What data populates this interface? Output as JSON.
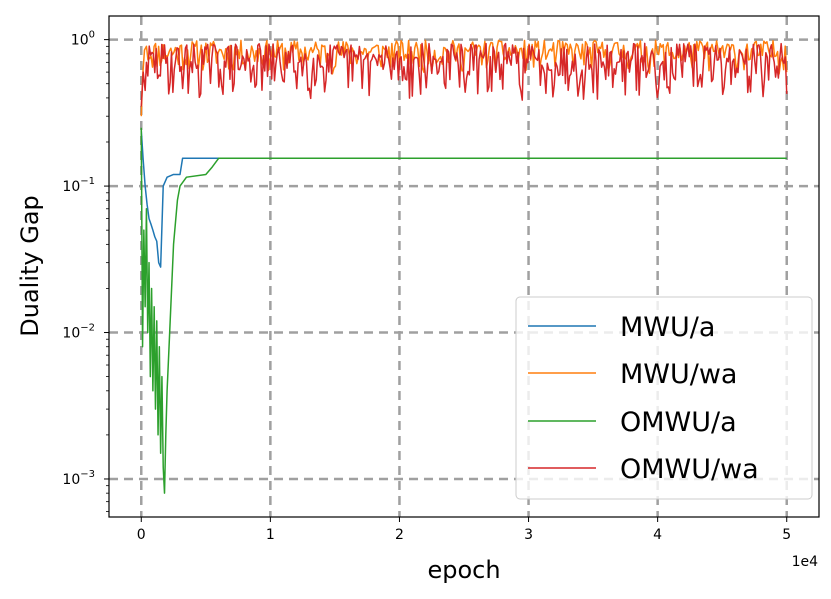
{
  "chart_data": {
    "type": "line",
    "title": "",
    "xlabel": "epoch",
    "ylabel": "Duality Gap",
    "x_offset_label": "1e4",
    "xscale": "linear",
    "yscale": "log",
    "xlim": [
      -2500,
      52500
    ],
    "ylim": [
      0.00055,
      1.45
    ],
    "grid": true,
    "legend_position": "lower-right",
    "x_ticks": [
      {
        "value": 0,
        "label": "0"
      },
      {
        "value": 10000,
        "label": "1"
      },
      {
        "value": 20000,
        "label": "2"
      },
      {
        "value": 30000,
        "label": "3"
      },
      {
        "value": 40000,
        "label": "4"
      },
      {
        "value": 50000,
        "label": "5"
      }
    ],
    "y_ticks": [
      {
        "value": 1,
        "base": "10",
        "exp": "0"
      },
      {
        "value": 0.1,
        "base": "10",
        "exp": "−1"
      },
      {
        "value": 0.01,
        "base": "10",
        "exp": "−2"
      },
      {
        "value": 0.001,
        "base": "10",
        "exp": "−3"
      }
    ],
    "series": [
      {
        "name": "MWU/a",
        "color": "#1f77b4",
        "points": [
          [
            0,
            0.24
          ],
          [
            150,
            0.15
          ],
          [
            300,
            0.1
          ],
          [
            450,
            0.075
          ],
          [
            600,
            0.06
          ],
          [
            750,
            0.055
          ],
          [
            900,
            0.05
          ],
          [
            1050,
            0.045
          ],
          [
            1200,
            0.042
          ],
          [
            1350,
            0.03
          ],
          [
            1500,
            0.028
          ],
          [
            1700,
            0.1
          ],
          [
            2000,
            0.115
          ],
          [
            2500,
            0.12
          ],
          [
            3000,
            0.12
          ],
          [
            3200,
            0.155
          ],
          [
            6000,
            0.155
          ],
          [
            50000,
            0.155
          ]
        ]
      },
      {
        "name": "MWU/wa",
        "color": "#ff7f0e",
        "band": {
          "x_start": 400,
          "x_end": 50000,
          "low": 0.58,
          "high": 0.99,
          "seed": 11,
          "n": 420
        },
        "points": [
          [
            0,
            0.3
          ],
          [
            100,
            0.55
          ],
          [
            250,
            0.85
          ],
          [
            400,
            0.9
          ]
        ]
      },
      {
        "name": "OMWU/a",
        "color": "#2ca02c",
        "points": [
          [
            0,
            0.25
          ],
          [
            100,
            0.008
          ],
          [
            200,
            0.05
          ],
          [
            300,
            0.015
          ],
          [
            400,
            0.07
          ],
          [
            500,
            0.01
          ],
          [
            600,
            0.03
          ],
          [
            700,
            0.005
          ],
          [
            800,
            0.02
          ],
          [
            900,
            0.004
          ],
          [
            1000,
            0.015
          ],
          [
            1100,
            0.003
          ],
          [
            1200,
            0.012
          ],
          [
            1300,
            0.002
          ],
          [
            1400,
            0.008
          ],
          [
            1500,
            0.0015
          ],
          [
            1600,
            0.005
          ],
          [
            1700,
            0.0012
          ],
          [
            1800,
            0.0008
          ],
          [
            1900,
            0.002
          ],
          [
            2000,
            0.004
          ],
          [
            2200,
            0.01
          ],
          [
            2500,
            0.04
          ],
          [
            2800,
            0.08
          ],
          [
            3000,
            0.1
          ],
          [
            3500,
            0.115
          ],
          [
            5000,
            0.12
          ],
          [
            5500,
            0.135
          ],
          [
            6000,
            0.155
          ],
          [
            50000,
            0.155
          ]
        ]
      },
      {
        "name": "OMWU/wa",
        "color": "#d62728",
        "band": {
          "x_start": 400,
          "x_end": 50000,
          "low": 0.38,
          "high": 0.95,
          "seed": 29,
          "n": 460
        },
        "points": [
          [
            0,
            0.35
          ],
          [
            150,
            0.6
          ],
          [
            300,
            0.45
          ],
          [
            400,
            0.7
          ]
        ]
      }
    ]
  }
}
